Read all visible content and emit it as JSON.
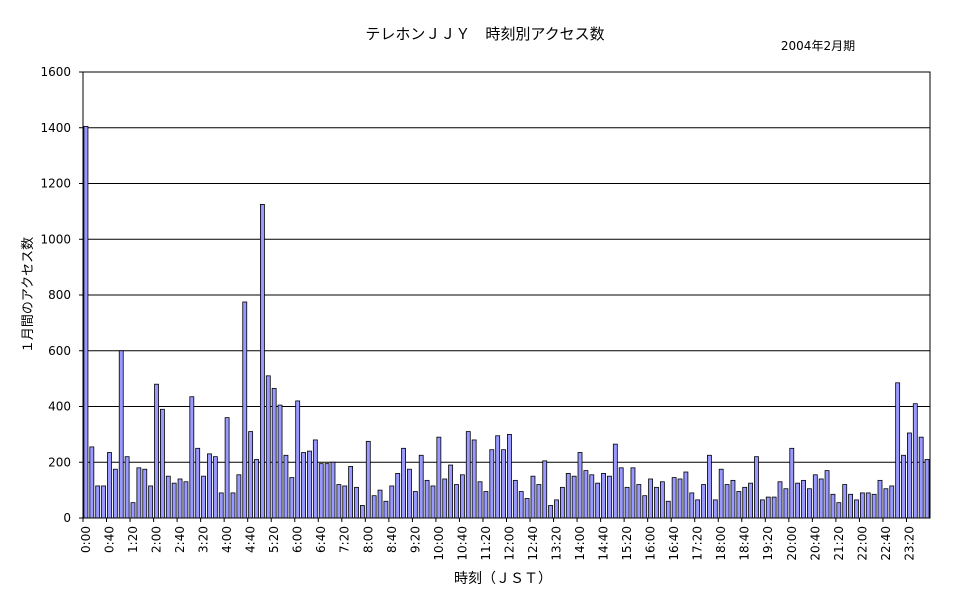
{
  "chart_data": {
    "type": "bar",
    "title": "テレホンＪＪＹ　時刻別アクセス数",
    "subtitle": "2004年2月期",
    "xlabel": "時刻（ＪＳＴ）",
    "ylabel": "１月間のアクセス数",
    "ylim": [
      0,
      1600
    ],
    "yticks": [
      0,
      200,
      400,
      600,
      800,
      1000,
      1200,
      1400,
      1600
    ],
    "grid": true,
    "bar_color": "#9999ff",
    "tick_labels": [
      "0:00",
      "0:40",
      "1:20",
      "2:00",
      "2:40",
      "3:20",
      "4:00",
      "4:40",
      "5:20",
      "6:00",
      "6:40",
      "7:20",
      "8:00",
      "8:40",
      "9:20",
      "10:00",
      "10:40",
      "11:20",
      "12:00",
      "12:40",
      "13:20",
      "14:00",
      "14:40",
      "15:20",
      "16:00",
      "16:40",
      "17:20",
      "18:00",
      "18:40",
      "19:20",
      "20:00",
      "20:40",
      "21:20",
      "22:00",
      "22:40",
      "23:20"
    ],
    "interval_minutes": 10,
    "values": [
      1405,
      255,
      115,
      115,
      235,
      175,
      600,
      220,
      55,
      180,
      175,
      115,
      480,
      390,
      150,
      125,
      140,
      130,
      435,
      250,
      150,
      230,
      220,
      90,
      360,
      90,
      155,
      775,
      310,
      210,
      1125,
      510,
      465,
      405,
      225,
      145,
      420,
      235,
      240,
      280,
      195,
      195,
      200,
      120,
      115,
      185,
      110,
      45,
      275,
      80,
      100,
      60,
      115,
      160,
      250,
      175,
      95,
      225,
      135,
      115,
      290,
      140,
      190,
      120,
      155,
      310,
      280,
      130,
      95,
      245,
      295,
      245,
      300,
      135,
      95,
      70,
      150,
      120,
      205,
      45,
      65,
      110,
      160,
      150,
      235,
      170,
      155,
      125,
      160,
      150,
      265,
      180,
      110,
      180,
      120,
      80,
      140,
      110,
      130,
      60,
      145,
      140,
      165,
      90,
      65,
      120,
      225,
      65,
      175,
      120,
      135,
      95,
      110,
      125,
      220,
      65,
      75,
      75,
      130,
      105,
      250,
      125,
      135,
      105,
      155,
      140,
      170,
      85,
      55,
      120,
      85,
      65,
      90,
      90,
      85,
      135,
      105,
      115,
      485,
      225,
      305,
      410,
      290,
      210
    ]
  }
}
